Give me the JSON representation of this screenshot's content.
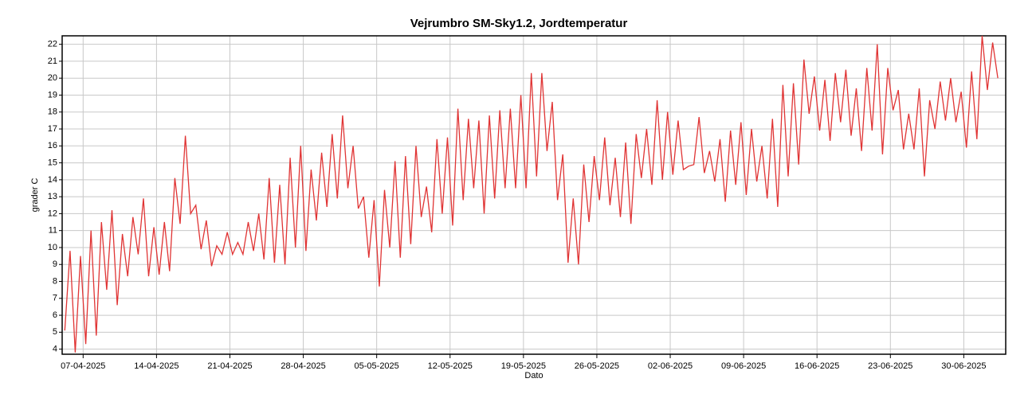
{
  "chart_data": {
    "type": "line",
    "title": "Vejrumbro SM-Sky1.2, Jordtemperatur",
    "x_label": "Dato",
    "y_label": "grader C",
    "xlim": [
      "2025-04-05",
      "2025-07-04"
    ],
    "ylim": [
      3.7,
      22.5
    ],
    "grid": true,
    "xticks": [
      {
        "value": "2025-04-07",
        "label": "07-04-2025"
      },
      {
        "value": "2025-04-14",
        "label": "14-04-2025"
      },
      {
        "value": "2025-04-21",
        "label": "21-04-2025"
      },
      {
        "value": "2025-04-28",
        "label": "28-04-2025"
      },
      {
        "value": "2025-05-05",
        "label": "05-05-2025"
      },
      {
        "value": "2025-05-12",
        "label": "12-05-2025"
      },
      {
        "value": "2025-05-19",
        "label": "19-05-2025"
      },
      {
        "value": "2025-05-26",
        "label": "26-05-2025"
      },
      {
        "value": "2025-06-02",
        "label": "02-06-2025"
      },
      {
        "value": "2025-06-09",
        "label": "09-06-2025"
      },
      {
        "value": "2025-06-16",
        "label": "16-06-2025"
      },
      {
        "value": "2025-06-23",
        "label": "23-06-2025"
      },
      {
        "value": "2025-06-30",
        "label": "30-06-2025"
      }
    ],
    "yticks": [
      4,
      5,
      6,
      7,
      8,
      9,
      10,
      11,
      12,
      13,
      14,
      15,
      16,
      17,
      18,
      19,
      20,
      21,
      22
    ],
    "x": [
      "2025-04-05",
      "2025-04-05",
      "2025-04-06",
      "2025-04-06",
      "2025-04-07",
      "2025-04-07",
      "2025-04-08",
      "2025-04-08",
      "2025-04-09",
      "2025-04-09",
      "2025-04-10",
      "2025-04-10",
      "2025-04-11",
      "2025-04-11",
      "2025-04-12",
      "2025-04-12",
      "2025-04-13",
      "2025-04-13",
      "2025-04-14",
      "2025-04-14",
      "2025-04-15",
      "2025-04-15",
      "2025-04-16",
      "2025-04-16",
      "2025-04-17",
      "2025-04-17",
      "2025-04-18",
      "2025-04-18",
      "2025-04-19",
      "2025-04-19",
      "2025-04-20",
      "2025-04-20",
      "2025-04-21",
      "2025-04-21",
      "2025-04-22",
      "2025-04-22",
      "2025-04-23",
      "2025-04-23",
      "2025-04-24",
      "2025-04-24",
      "2025-04-25",
      "2025-04-25",
      "2025-04-26",
      "2025-04-26",
      "2025-04-27",
      "2025-04-27",
      "2025-04-28",
      "2025-04-28",
      "2025-04-29",
      "2025-04-29",
      "2025-04-30",
      "2025-04-30",
      "2025-05-01",
      "2025-05-01",
      "2025-05-02",
      "2025-05-02",
      "2025-05-03",
      "2025-05-03",
      "2025-05-04",
      "2025-05-04",
      "2025-05-05",
      "2025-05-05",
      "2025-05-06",
      "2025-05-06",
      "2025-05-07",
      "2025-05-07",
      "2025-05-08",
      "2025-05-08",
      "2025-05-09",
      "2025-05-09",
      "2025-05-10",
      "2025-05-10",
      "2025-05-11",
      "2025-05-11",
      "2025-05-12",
      "2025-05-12",
      "2025-05-13",
      "2025-05-13",
      "2025-05-14",
      "2025-05-14",
      "2025-05-15",
      "2025-05-15",
      "2025-05-16",
      "2025-05-16",
      "2025-05-17",
      "2025-05-17",
      "2025-05-18",
      "2025-05-18",
      "2025-05-19",
      "2025-05-19",
      "2025-05-20",
      "2025-05-20",
      "2025-05-21",
      "2025-05-21",
      "2025-05-22",
      "2025-05-22",
      "2025-05-23",
      "2025-05-23",
      "2025-05-24",
      "2025-05-24",
      "2025-05-25",
      "2025-05-25",
      "2025-05-26",
      "2025-05-26",
      "2025-05-27",
      "2025-05-27",
      "2025-05-28",
      "2025-05-28",
      "2025-05-29",
      "2025-05-29",
      "2025-05-30",
      "2025-05-30",
      "2025-05-31",
      "2025-05-31",
      "2025-06-01",
      "2025-06-01",
      "2025-06-02",
      "2025-06-02",
      "2025-06-03",
      "2025-06-03",
      "2025-06-04",
      "2025-06-04",
      "2025-06-05",
      "2025-06-05",
      "2025-06-06",
      "2025-06-06",
      "2025-06-07",
      "2025-06-07",
      "2025-06-08",
      "2025-06-08",
      "2025-06-09",
      "2025-06-09",
      "2025-06-10",
      "2025-06-10",
      "2025-06-11",
      "2025-06-11",
      "2025-06-12",
      "2025-06-12",
      "2025-06-13",
      "2025-06-13",
      "2025-06-14",
      "2025-06-14",
      "2025-06-15",
      "2025-06-15",
      "2025-06-16",
      "2025-06-16",
      "2025-06-17",
      "2025-06-17",
      "2025-06-18",
      "2025-06-18",
      "2025-06-19",
      "2025-06-19",
      "2025-06-20",
      "2025-06-20",
      "2025-06-21",
      "2025-06-21",
      "2025-06-22",
      "2025-06-22",
      "2025-06-23",
      "2025-06-23",
      "2025-06-24",
      "2025-06-24",
      "2025-06-25",
      "2025-06-25",
      "2025-06-26",
      "2025-06-26",
      "2025-06-27",
      "2025-06-27",
      "2025-06-28",
      "2025-06-28",
      "2025-06-29",
      "2025-06-29",
      "2025-06-30",
      "2025-06-30",
      "2025-07-01",
      "2025-07-01",
      "2025-07-02",
      "2025-07-02",
      "2025-07-03"
    ],
    "series": [
      {
        "color": "#e03434",
        "values": [
          5.1,
          9.8,
          3.8,
          9.5,
          4.3,
          11,
          4.8,
          11.5,
          7.5,
          12.2,
          6.6,
          10.8,
          8.3,
          11.8,
          9.6,
          12.9,
          8.3,
          11.2,
          8.4,
          11.5,
          8.6,
          14.1,
          11.4,
          16.6,
          12,
          12.5,
          9.9,
          11.6,
          8.9,
          10.1,
          9.6,
          10.9,
          9.6,
          10.3,
          9.6,
          11.5,
          9.8,
          12,
          9.3,
          14.1,
          9.1,
          13.7,
          9,
          15.3,
          10,
          16,
          9.8,
          14.6,
          11.6,
          15.6,
          12.4,
          16.7,
          12.9,
          17.8,
          13.5,
          16,
          12.3,
          13,
          9.4,
          12.8,
          7.7,
          13.4,
          10,
          15.1,
          9.4,
          15.4,
          10.2,
          16,
          11.8,
          13.6,
          10.9,
          16.4,
          12,
          16.5,
          11.3,
          18.2,
          12.8,
          17.6,
          13.5,
          17.5,
          12,
          17.8,
          12.9,
          18.1,
          13.5,
          18.2,
          13.5,
          19,
          13.5,
          20.3,
          14.2,
          20.3,
          15.7,
          18.6,
          12.8,
          15.5,
          9.1,
          12.9,
          9,
          14.9,
          11.5,
          15.4,
          12.8,
          16.5,
          12.5,
          15.3,
          11.8,
          16.2,
          11.4,
          16.7,
          14.1,
          17,
          13.7,
          18.7,
          14,
          18,
          14.3,
          17.5,
          14.6,
          14.8,
          14.9,
          17.7,
          14.4,
          15.7,
          13.9,
          16.4,
          12.7,
          16.9,
          13.7,
          17.4,
          13.1,
          17,
          13.9,
          16,
          12.9,
          17.6,
          12.4,
          19.6,
          14.2,
          19.7,
          14.9,
          21.1,
          17.9,
          20.1,
          16.9,
          19.9,
          16.3,
          20.3,
          17.4,
          20.5,
          16.6,
          19.4,
          15.7,
          20.6,
          16.9,
          22,
          15.5,
          20.6,
          18.1,
          19.3,
          15.8,
          17.9,
          15.8,
          19.4,
          14.2,
          18.7,
          17,
          19.8,
          17.5,
          20,
          17.4,
          19.2,
          15.9,
          20.4,
          16.4,
          22.5,
          19.3,
          22.1,
          20
        ]
      }
    ]
  }
}
